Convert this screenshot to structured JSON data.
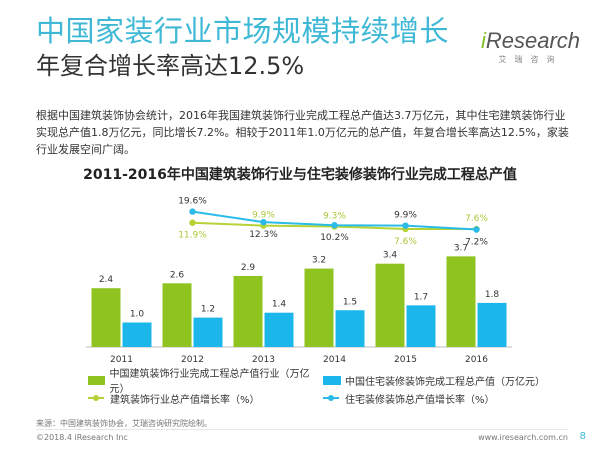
{
  "header": {
    "title": "中国家装行业市场规模持续增长",
    "subtitle": "年复合增长率高达12.5%"
  },
  "logo": {
    "mark_i": "i",
    "mark_rest": "Research",
    "cn": "艾瑞咨询"
  },
  "body_text": "根据中国建筑装饰协会统计，2016年我国建筑装饰行业完成工程总产值达3.7万亿元，其中住宅建筑装饰行业实现总产值1.8万亿元，同比增长7.2%。相较于2011年1.0万亿元的总产值，年复合增长率高达12.5%，家装行业发展空间广阔。",
  "colors": {
    "title": "#3fb8d6",
    "green_bar": "#8fc31f",
    "blue_bar": "#1cb7ea",
    "green_line": "#b5d334",
    "blue_line": "#2bbbe8",
    "green_label": "#a9c93a",
    "blue_label": "#2aa7d6"
  },
  "chart_data": {
    "type": "bar",
    "title": "2011-2016年中国建筑装饰行业与住宅装修装饰行业完成工程总产值",
    "categories": [
      "2011",
      "2012",
      "2013",
      "2014",
      "2015",
      "2016"
    ],
    "series": [
      {
        "name": "中国建筑装饰行业完成工程总产值行业（万亿元）",
        "kind": "bar",
        "values": [
          2.4,
          2.6,
          2.9,
          3.2,
          3.4,
          3.7
        ],
        "labels": [
          "2.4",
          "2.6",
          "2.9",
          "3.2",
          "3.4",
          "3.7"
        ]
      },
      {
        "name": "中国住宅装修装饰完成工程总产值（万亿元）",
        "kind": "bar",
        "values": [
          1.0,
          1.2,
          1.4,
          1.5,
          1.7,
          1.8
        ],
        "labels": [
          "1.0",
          "1.2",
          "1.4",
          "1.5",
          "1.7",
          "1.8"
        ]
      },
      {
        "name": "建筑装饰行业总产值增长率（%）",
        "kind": "line",
        "x": [
          "2012",
          "2013",
          "2014",
          "2015",
          "2016"
        ],
        "values": [
          11.9,
          9.9,
          9.3,
          7.6,
          7.6
        ],
        "labels": [
          "11.9%",
          "9.9%",
          "9.3%",
          "7.6%",
          "7.6%"
        ]
      },
      {
        "name": "住宅装修装饰总产值增长率（%）",
        "kind": "line",
        "x": [
          "2012",
          "2013",
          "2014",
          "2015",
          "2016"
        ],
        "values": [
          19.6,
          12.3,
          10.2,
          9.9,
          7.2
        ],
        "labels": [
          "19.6%",
          "12.3%",
          "10.2%",
          "9.9%",
          "7.2%"
        ]
      }
    ],
    "ylim": [
      0,
      4
    ],
    "legend_position": "bottom",
    "grid": false
  },
  "source": "来源：中国建筑装饰协会，艾瑞咨询研究院绘制。",
  "footer": {
    "left": "©2018.4 iResearch Inc",
    "right": "www.iresearch.com.cn",
    "page": "8"
  }
}
